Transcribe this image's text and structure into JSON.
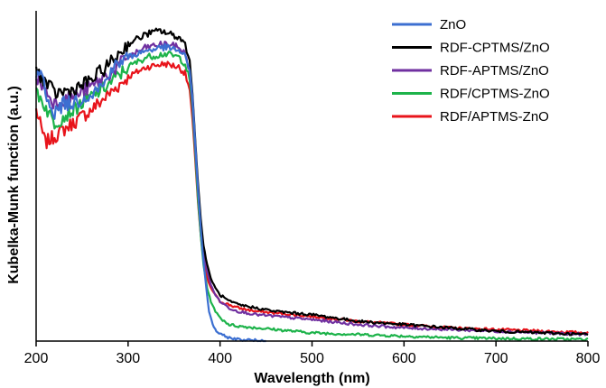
{
  "chart_data": {
    "type": "line",
    "title": "",
    "xlabel": "Wavelength (nm)",
    "ylabel": "Kubelka-Munk function (a.u.)",
    "xlim": [
      200,
      800
    ],
    "ylim": [
      0,
      1
    ],
    "xticks": [
      200,
      300,
      400,
      500,
      600,
      700,
      800
    ],
    "yticks_labeled": false,
    "grid": false,
    "legend": {
      "position": "top-right"
    },
    "series": [
      {
        "name": "ZnO",
        "color": "#3c6fd1",
        "x": [
          200,
          205,
          210,
          215,
          220,
          230,
          240,
          260,
          275,
          280,
          300,
          320,
          340,
          355,
          362,
          367,
          370,
          373,
          376,
          379,
          382,
          385,
          388,
          392,
          396,
          400,
          410,
          420,
          450
        ],
        "y": [
          0.8,
          0.82,
          0.76,
          0.72,
          0.69,
          0.72,
          0.72,
          0.75,
          0.78,
          0.82,
          0.86,
          0.88,
          0.89,
          0.88,
          0.86,
          0.82,
          0.74,
          0.6,
          0.46,
          0.34,
          0.24,
          0.16,
          0.09,
          0.05,
          0.03,
          0.02,
          0.01,
          0.005,
          0.0
        ]
      },
      {
        "name": "RDF-CPTMS/ZnO",
        "color": "#000000",
        "x": [
          200,
          220,
          240,
          260,
          280,
          300,
          320,
          335,
          345,
          355,
          362,
          367,
          370,
          373,
          376,
          379,
          382,
          386,
          390,
          395,
          400,
          410,
          420,
          440,
          460,
          480,
          500,
          550,
          600,
          650,
          700,
          750,
          800
        ],
        "y": [
          0.82,
          0.75,
          0.76,
          0.79,
          0.84,
          0.9,
          0.93,
          0.94,
          0.93,
          0.92,
          0.9,
          0.85,
          0.75,
          0.61,
          0.48,
          0.37,
          0.29,
          0.23,
          0.19,
          0.16,
          0.14,
          0.12,
          0.11,
          0.1,
          0.09,
          0.085,
          0.08,
          0.06,
          0.05,
          0.04,
          0.03,
          0.025,
          0.02
        ]
      },
      {
        "name": "RDF-APTMS/ZnO",
        "color": "#7030a0",
        "x": [
          200,
          220,
          240,
          260,
          280,
          300,
          320,
          340,
          355,
          362,
          367,
          370,
          373,
          376,
          379,
          382,
          386,
          390,
          395,
          400,
          410,
          420,
          440,
          460,
          480,
          500,
          550,
          600,
          650,
          700,
          750,
          800
        ],
        "y": [
          0.8,
          0.72,
          0.74,
          0.77,
          0.81,
          0.86,
          0.89,
          0.9,
          0.89,
          0.87,
          0.82,
          0.72,
          0.59,
          0.46,
          0.35,
          0.27,
          0.21,
          0.17,
          0.14,
          0.12,
          0.1,
          0.09,
          0.08,
          0.075,
          0.07,
          0.065,
          0.05,
          0.04,
          0.035,
          0.03,
          0.025,
          0.02
        ]
      },
      {
        "name": "RDF/CPTMS-ZnO",
        "color": "#1db34a",
        "x": [
          200,
          220,
          240,
          260,
          280,
          300,
          320,
          340,
          355,
          362,
          367,
          370,
          373,
          376,
          379,
          382,
          386,
          390,
          395,
          400,
          410,
          420,
          440,
          460,
          480,
          500,
          550,
          600,
          650,
          700,
          800
        ],
        "y": [
          0.76,
          0.66,
          0.7,
          0.74,
          0.78,
          0.83,
          0.86,
          0.87,
          0.86,
          0.84,
          0.79,
          0.7,
          0.57,
          0.43,
          0.32,
          0.23,
          0.16,
          0.12,
          0.09,
          0.07,
          0.05,
          0.045,
          0.04,
          0.035,
          0.03,
          0.025,
          0.02,
          0.015,
          0.01,
          0.008,
          0.005
        ]
      },
      {
        "name": "RDF/APTMS-ZnO",
        "color": "#e8141b",
        "x": [
          200,
          210,
          220,
          240,
          260,
          280,
          300,
          320,
          340,
          355,
          362,
          367,
          370,
          373,
          376,
          379,
          382,
          386,
          390,
          395,
          400,
          410,
          420,
          440,
          460,
          480,
          500,
          550,
          600,
          650,
          700,
          750,
          800
        ],
        "y": [
          0.7,
          0.6,
          0.62,
          0.66,
          0.7,
          0.75,
          0.8,
          0.83,
          0.84,
          0.83,
          0.81,
          0.76,
          0.67,
          0.55,
          0.42,
          0.32,
          0.24,
          0.19,
          0.16,
          0.14,
          0.12,
          0.11,
          0.1,
          0.09,
          0.085,
          0.08,
          0.075,
          0.06,
          0.05,
          0.04,
          0.035,
          0.03,
          0.025
        ]
      }
    ]
  }
}
